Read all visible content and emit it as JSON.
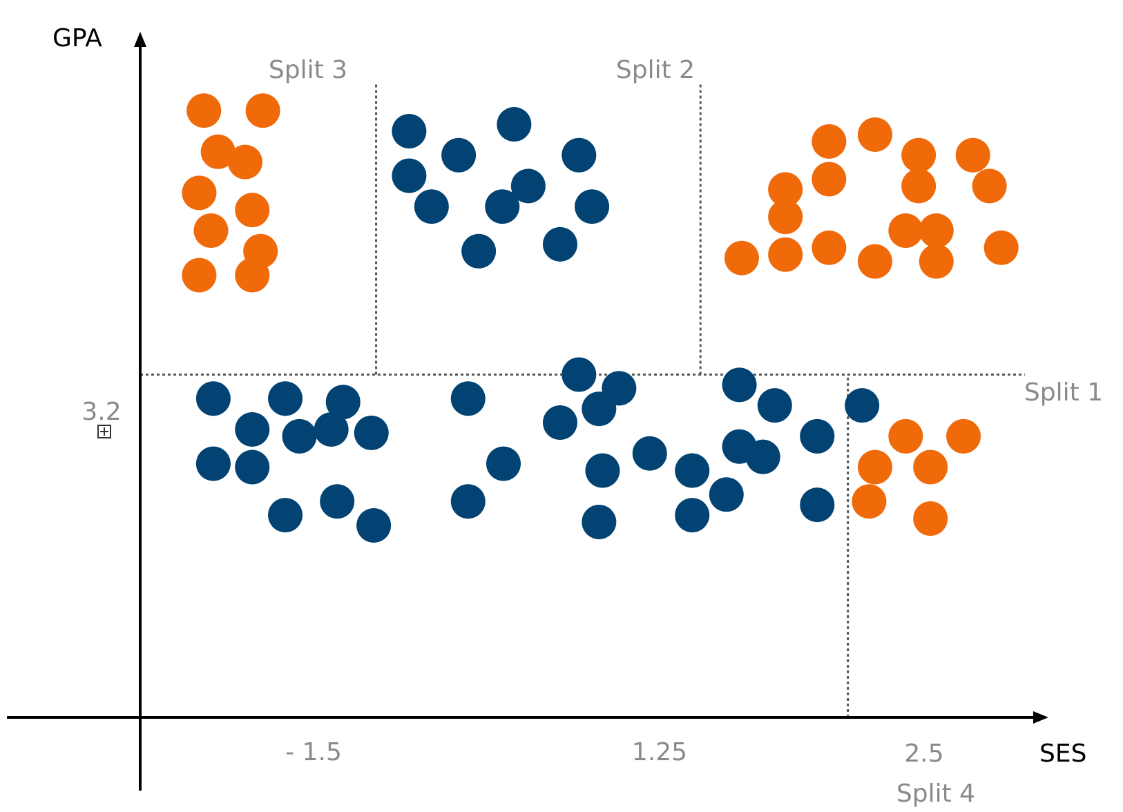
{
  "chart_data": {
    "type": "scatter",
    "title": "",
    "xlabel": "SES",
    "ylabel": "GPA",
    "x_ticks": [
      "- 1.5",
      "1.25",
      "2.5"
    ],
    "y_ticks": [
      "3.2"
    ],
    "xlim": [
      -3.5,
      4.2
    ],
    "ylim": [
      2.2,
      4.2
    ],
    "grid": false,
    "colors": {
      "orange": "#f06a0a",
      "blue": "#024373"
    },
    "splits": [
      {
        "label": "Split 1",
        "axis": "y",
        "value": 3.2,
        "x_from": -3.5,
        "x_to": 4.0
      },
      {
        "label": "Split 2",
        "axis": "x",
        "value": 1.25,
        "y_from": 3.2,
        "y_to": 4.05
      },
      {
        "label": "Split 3",
        "axis": "x",
        "value": -1.5,
        "y_from": 3.2,
        "y_to": 4.05
      },
      {
        "label": "Split 4",
        "axis": "x",
        "value": 2.5,
        "y_from": 2.2,
        "y_to": 3.2
      }
    ],
    "series": [
      {
        "color": "orange",
        "points": [
          [
            -2.96,
            3.97
          ],
          [
            -2.46,
            3.97
          ],
          [
            -2.84,
            3.85
          ],
          [
            -2.61,
            3.82
          ],
          [
            -3.0,
            3.73
          ],
          [
            -2.55,
            3.68
          ],
          [
            -2.9,
            3.62
          ],
          [
            -2.48,
            3.56
          ],
          [
            -3.0,
            3.49
          ],
          [
            -2.55,
            3.49
          ],
          [
            1.6,
            3.54
          ],
          [
            1.97,
            3.66
          ],
          [
            1.97,
            3.74
          ],
          [
            2.34,
            3.77
          ],
          [
            2.34,
            3.88
          ],
          [
            1.97,
            3.55
          ],
          [
            2.34,
            3.57
          ],
          [
            2.73,
            3.53
          ],
          [
            2.73,
            3.9
          ],
          [
            3.1,
            3.84
          ],
          [
            3.1,
            3.75
          ],
          [
            3.56,
            3.84
          ],
          [
            3.7,
            3.75
          ],
          [
            2.99,
            3.62
          ],
          [
            3.25,
            3.62
          ],
          [
            3.8,
            3.57
          ],
          [
            3.25,
            3.53
          ],
          [
            2.99,
            3.02
          ],
          [
            3.48,
            3.02
          ],
          [
            2.73,
            2.93
          ],
          [
            3.2,
            2.93
          ],
          [
            2.68,
            2.83
          ],
          [
            3.2,
            2.78
          ]
        ]
      },
      {
        "color": "blue",
        "points": [
          [
            -1.22,
            3.91
          ],
          [
            -0.8,
            3.84
          ],
          [
            -0.33,
            3.93
          ],
          [
            0.22,
            3.84
          ],
          [
            -1.22,
            3.78
          ],
          [
            -1.03,
            3.69
          ],
          [
            -0.43,
            3.69
          ],
          [
            -0.21,
            3.75
          ],
          [
            0.33,
            3.69
          ],
          [
            0.06,
            3.58
          ],
          [
            -0.63,
            3.56
          ],
          [
            -2.88,
            3.13
          ],
          [
            -2.27,
            3.13
          ],
          [
            -1.78,
            3.12
          ],
          [
            -0.72,
            3.13
          ],
          [
            -2.55,
            3.04
          ],
          [
            -2.15,
            3.02
          ],
          [
            -1.88,
            3.04
          ],
          [
            -1.54,
            3.03
          ],
          [
            -2.88,
            2.94
          ],
          [
            -2.55,
            2.93
          ],
          [
            -1.83,
            2.83
          ],
          [
            -2.27,
            2.79
          ],
          [
            -1.52,
            2.76
          ],
          [
            -0.72,
            2.83
          ],
          [
            -0.42,
            2.94
          ],
          [
            0.06,
            3.06
          ],
          [
            0.22,
            3.2
          ],
          [
            0.56,
            3.16
          ],
          [
            0.39,
            3.1
          ],
          [
            0.42,
            2.92
          ],
          [
            0.82,
            2.97
          ],
          [
            1.18,
            2.92
          ],
          [
            1.58,
            3.17
          ],
          [
            1.58,
            2.99
          ],
          [
            1.88,
            3.11
          ],
          [
            2.24,
            3.02
          ],
          [
            2.62,
            3.11
          ],
          [
            1.78,
            2.96
          ],
          [
            1.47,
            2.85
          ],
          [
            2.24,
            2.82
          ],
          [
            0.39,
            2.77
          ],
          [
            1.18,
            2.79
          ]
        ]
      }
    ]
  }
}
